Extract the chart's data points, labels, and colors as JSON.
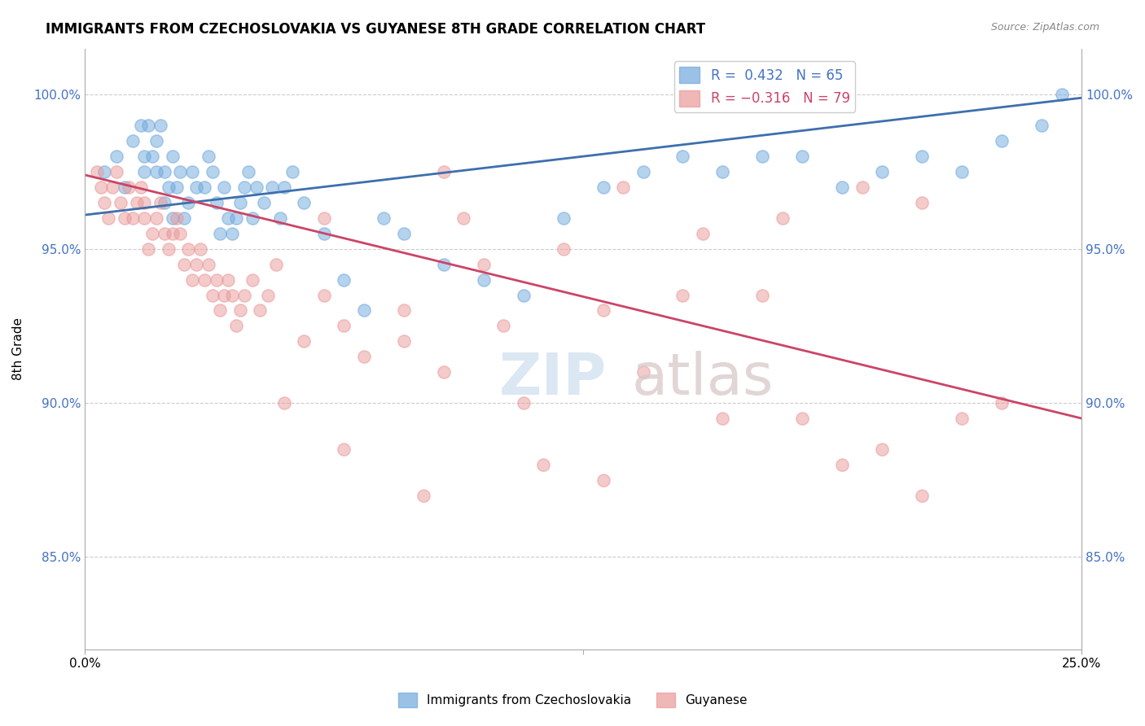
{
  "title": "IMMIGRANTS FROM CZECHOSLOVAKIA VS GUYANESE 8TH GRADE CORRELATION CHART",
  "source": "Source: ZipAtlas.com",
  "ylabel": "8th Grade",
  "ytick_labels": [
    "100.0%",
    "95.0%",
    "90.0%",
    "85.0%"
  ],
  "ytick_values": [
    1.0,
    0.95,
    0.9,
    0.85
  ],
  "xmin": 0.0,
  "xmax": 0.25,
  "ymin": 0.82,
  "ymax": 1.015,
  "legend_blue_text": "R =  0.432   N = 65",
  "legend_pink_text": "R = −0.316   N = 79",
  "blue_color": "#6fa8dc",
  "pink_color": "#ea9999",
  "blue_line_color": "#3d6fad",
  "pink_line_color": "#cc4466",
  "legend_blue_color": "#4472c4",
  "legend_pink_color": "#cc4466",
  "ytick_color": "#4472c4",
  "blue_scatter_x": [
    0.005,
    0.008,
    0.01,
    0.012,
    0.014,
    0.015,
    0.015,
    0.016,
    0.017,
    0.018,
    0.018,
    0.019,
    0.02,
    0.02,
    0.021,
    0.022,
    0.022,
    0.023,
    0.024,
    0.025,
    0.026,
    0.027,
    0.028,
    0.03,
    0.031,
    0.032,
    0.033,
    0.034,
    0.035,
    0.036,
    0.037,
    0.038,
    0.039,
    0.04,
    0.041,
    0.042,
    0.043,
    0.045,
    0.047,
    0.049,
    0.05,
    0.052,
    0.055,
    0.06,
    0.065,
    0.07,
    0.075,
    0.08,
    0.09,
    0.1,
    0.11,
    0.12,
    0.13,
    0.14,
    0.15,
    0.16,
    0.17,
    0.18,
    0.19,
    0.2,
    0.21,
    0.22,
    0.23,
    0.24,
    0.245
  ],
  "blue_scatter_y": [
    0.975,
    0.98,
    0.97,
    0.985,
    0.99,
    0.98,
    0.975,
    0.99,
    0.98,
    0.975,
    0.985,
    0.99,
    0.975,
    0.965,
    0.97,
    0.98,
    0.96,
    0.97,
    0.975,
    0.96,
    0.965,
    0.975,
    0.97,
    0.97,
    0.98,
    0.975,
    0.965,
    0.955,
    0.97,
    0.96,
    0.955,
    0.96,
    0.965,
    0.97,
    0.975,
    0.96,
    0.97,
    0.965,
    0.97,
    0.96,
    0.97,
    0.975,
    0.965,
    0.955,
    0.94,
    0.93,
    0.96,
    0.955,
    0.945,
    0.94,
    0.935,
    0.96,
    0.97,
    0.975,
    0.98,
    0.975,
    0.98,
    0.98,
    0.97,
    0.975,
    0.98,
    0.975,
    0.985,
    0.99,
    1.0
  ],
  "pink_scatter_x": [
    0.003,
    0.004,
    0.005,
    0.006,
    0.007,
    0.008,
    0.009,
    0.01,
    0.011,
    0.012,
    0.013,
    0.014,
    0.015,
    0.015,
    0.016,
    0.017,
    0.018,
    0.019,
    0.02,
    0.021,
    0.022,
    0.023,
    0.024,
    0.025,
    0.026,
    0.027,
    0.028,
    0.029,
    0.03,
    0.031,
    0.032,
    0.033,
    0.034,
    0.035,
    0.036,
    0.037,
    0.038,
    0.039,
    0.04,
    0.042,
    0.044,
    0.046,
    0.048,
    0.05,
    0.055,
    0.06,
    0.065,
    0.07,
    0.08,
    0.09,
    0.1,
    0.11,
    0.12,
    0.13,
    0.14,
    0.15,
    0.16,
    0.17,
    0.18,
    0.19,
    0.2,
    0.21,
    0.22,
    0.23,
    0.135,
    0.155,
    0.175,
    0.09,
    0.185,
    0.195,
    0.21,
    0.13,
    0.06,
    0.065,
    0.08,
    0.085,
    0.095,
    0.105,
    0.115
  ],
  "pink_scatter_y": [
    0.975,
    0.97,
    0.965,
    0.96,
    0.97,
    0.975,
    0.965,
    0.96,
    0.97,
    0.96,
    0.965,
    0.97,
    0.965,
    0.96,
    0.95,
    0.955,
    0.96,
    0.965,
    0.955,
    0.95,
    0.955,
    0.96,
    0.955,
    0.945,
    0.95,
    0.94,
    0.945,
    0.95,
    0.94,
    0.945,
    0.935,
    0.94,
    0.93,
    0.935,
    0.94,
    0.935,
    0.925,
    0.93,
    0.935,
    0.94,
    0.93,
    0.935,
    0.945,
    0.9,
    0.92,
    0.935,
    0.925,
    0.915,
    0.93,
    0.91,
    0.945,
    0.9,
    0.95,
    0.93,
    0.91,
    0.935,
    0.895,
    0.935,
    0.895,
    0.88,
    0.885,
    0.87,
    0.895,
    0.9,
    0.97,
    0.955,
    0.96,
    0.975,
    1.0,
    0.97,
    0.965,
    0.875,
    0.96,
    0.885,
    0.92,
    0.87,
    0.96,
    0.925,
    0.88
  ],
  "blue_line_x": [
    0.0,
    0.25
  ],
  "blue_line_y": [
    0.961,
    0.999
  ],
  "pink_line_x": [
    0.0,
    0.25
  ],
  "pink_line_y": [
    0.974,
    0.895
  ],
  "marker_size": 120,
  "marker_alpha": 0.5,
  "legend_bottom_blue": "Immigrants from Czechoslovakia",
  "legend_bottom_pink": "Guyanese"
}
